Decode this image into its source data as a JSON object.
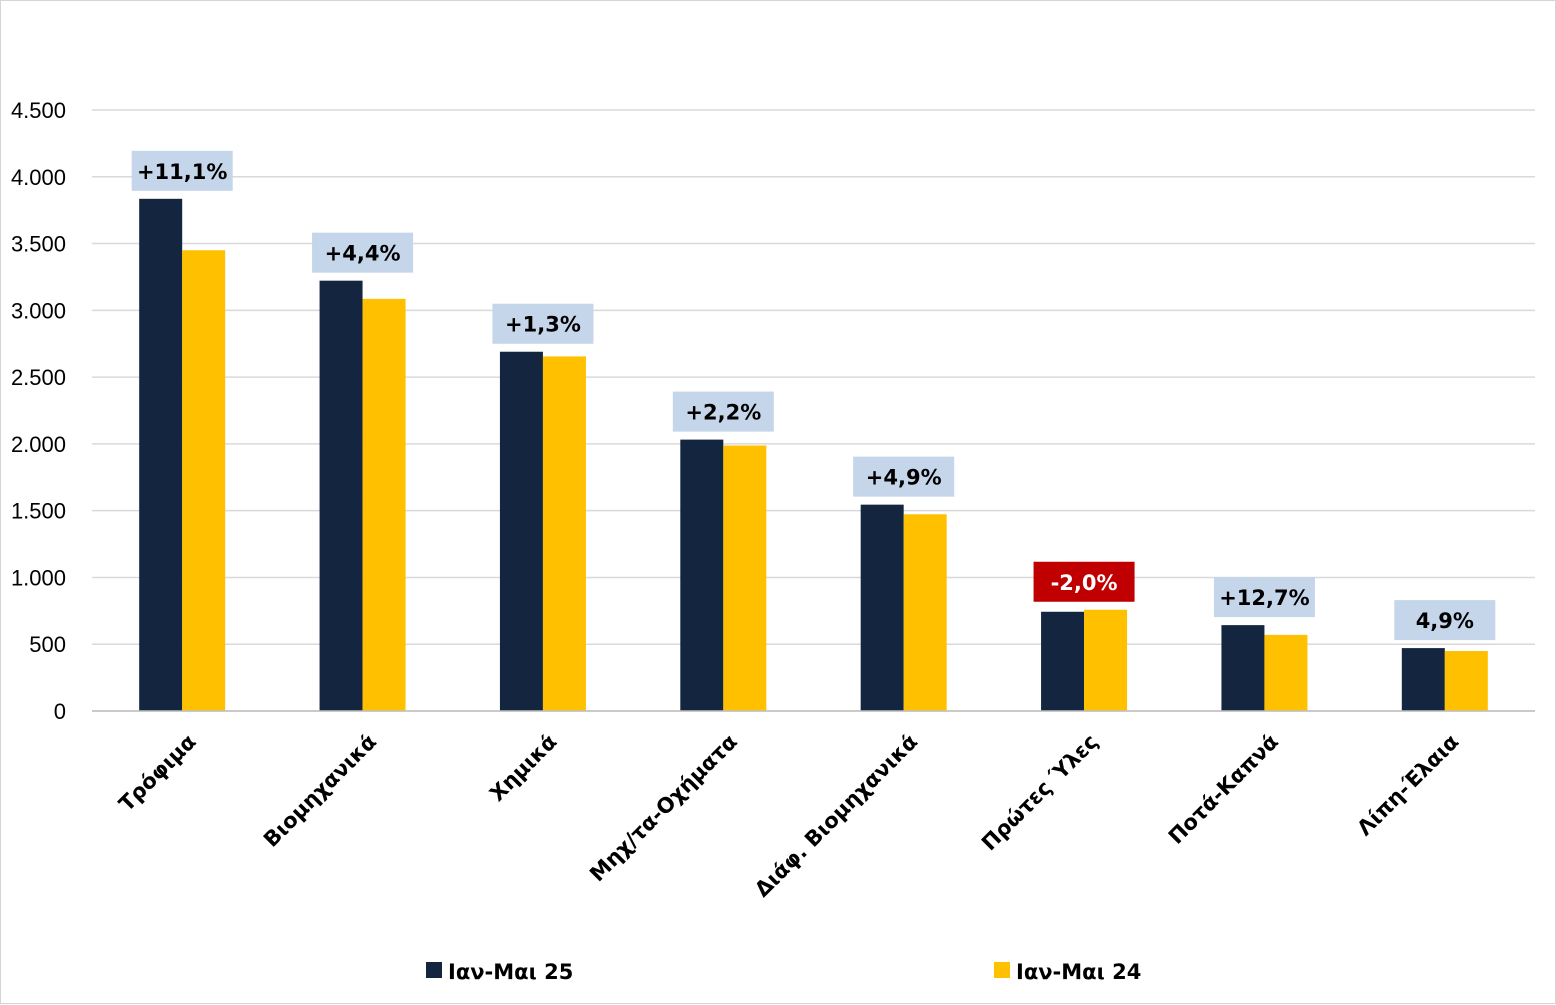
{
  "chart_data": {
    "type": "bar",
    "title": "",
    "xlabel": "",
    "ylabel": "",
    "categories": [
      "Τρόφιμα",
      "Βιομηχανικά",
      "Χημικά",
      "Μηχ/τα-Οχήματα",
      "Διάφ. Βιομηχανικά",
      "Πρώτες Ύλες",
      "Ποτά-Καπνά",
      "Λίπη-Έλαια"
    ],
    "series": [
      {
        "name": "Ιαν-Μαι 25",
        "color": "#13253f",
        "values": [
          3835,
          3222,
          2690,
          2032,
          1545,
          743,
          643,
          471
        ]
      },
      {
        "name": "Ιαν-Μαι 24",
        "color": "#ffc000",
        "values": [
          3450,
          3086,
          2655,
          1988,
          1473,
          758,
          570,
          449
        ]
      }
    ],
    "ylim": [
      0,
      4500
    ],
    "yticks": [
      0,
      500,
      1000,
      1500,
      2000,
      2500,
      3000,
      3500,
      4000,
      4500
    ],
    "ytick_labels": [
      "0",
      "500",
      "1.000",
      "1.500",
      "2.000",
      "2.500",
      "3.000",
      "3.500",
      "4.000",
      "4.500"
    ],
    "annotations": [
      "+11,1%",
      "+4,4%",
      "+1,3%",
      "+2,2%",
      "+4,9%",
      "-2,0%",
      "+12,7%",
      "4,9%"
    ],
    "annotation_colors": {
      "positive_fill": "#c5d5ea",
      "positive_text": "#000000",
      "negative_fill": "#c00000",
      "negative_text": "#ffffff"
    },
    "annotation_negative": [
      false,
      false,
      false,
      false,
      false,
      true,
      false,
      false
    ],
    "grid": true,
    "legend_position": "bottom"
  }
}
